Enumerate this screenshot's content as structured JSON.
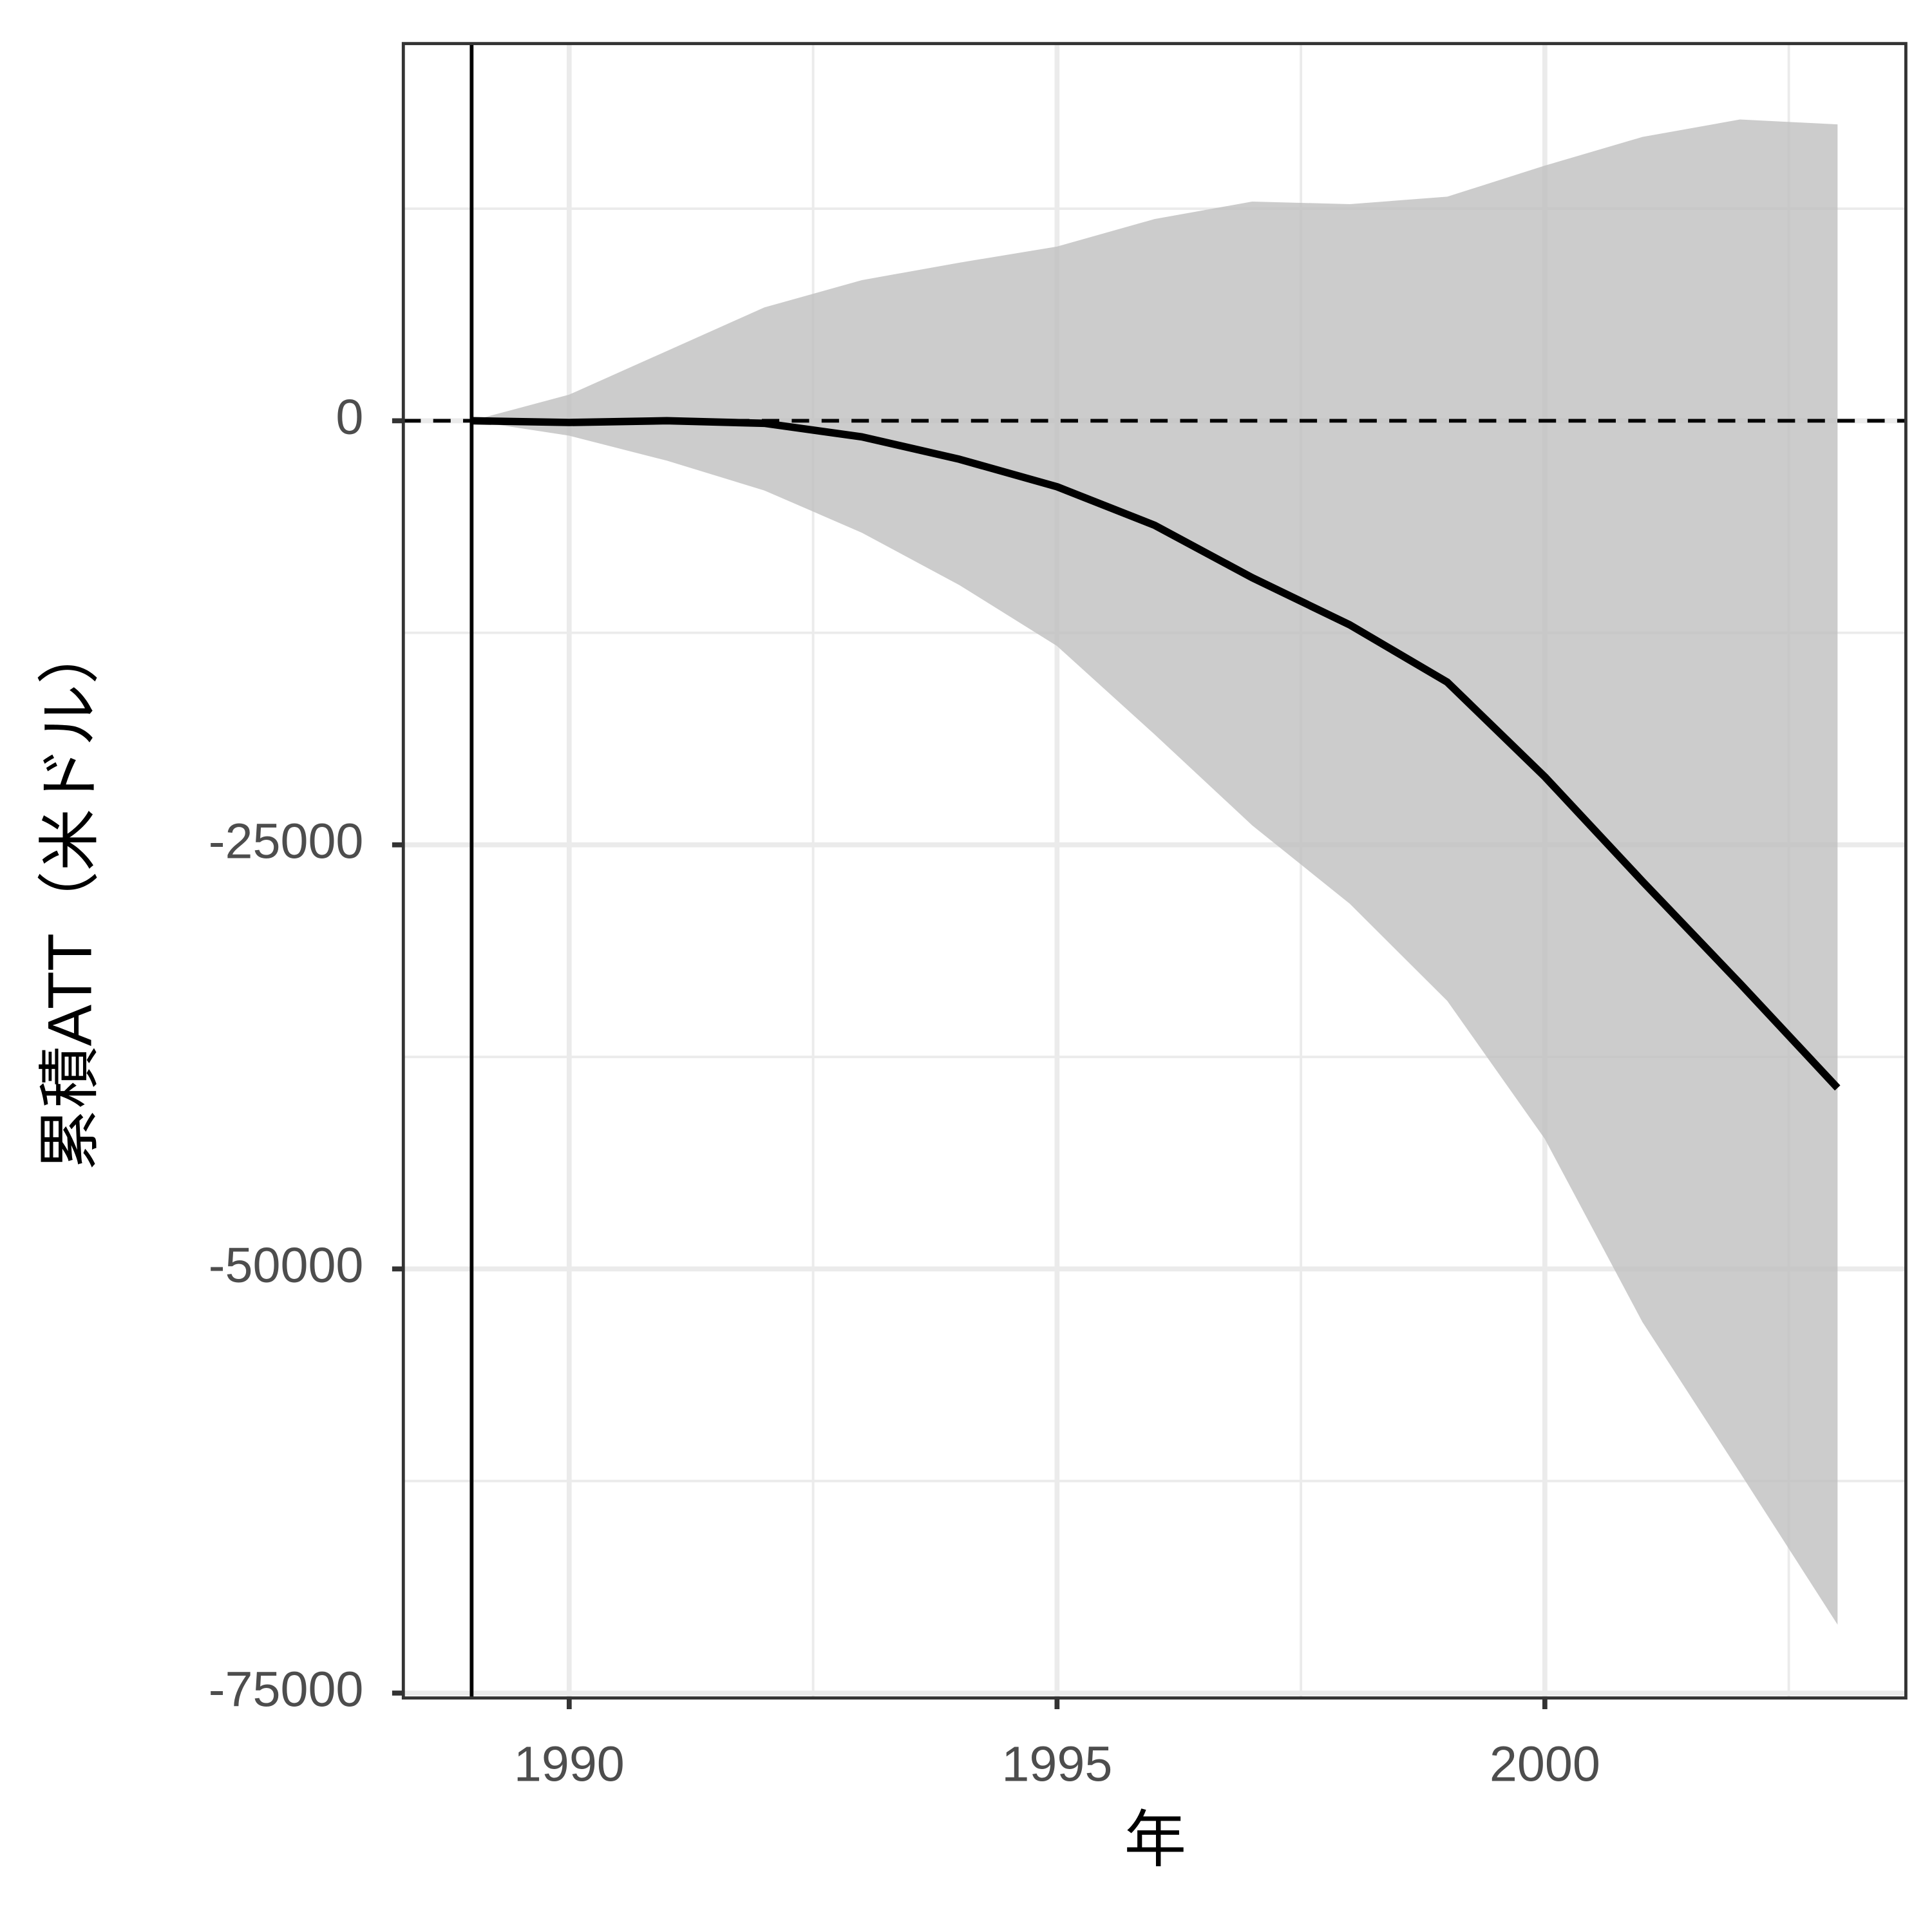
{
  "chart_data": {
    "type": "line",
    "xlabel": "年",
    "ylabel": "累積ATT（米ドル）",
    "x": [
      1989,
      1990,
      1991,
      1992,
      1993,
      1994,
      1995,
      1996,
      1997,
      1998,
      1999,
      2000,
      2001,
      2002,
      2003
    ],
    "series": [
      {
        "color": "#000000",
        "values": [
          0,
          -100,
          0,
          -150,
          -950,
          -2270,
          -3890,
          -6160,
          -9250,
          -12030,
          -15410,
          -20990,
          -27150,
          -33170,
          -39330
        ]
      }
    ],
    "band": {
      "color": "#bfbfbf",
      "upper": [
        0,
        1540,
        4110,
        6680,
        8290,
        9320,
        10270,
        11890,
        12920,
        12770,
        13210,
        15040,
        16730,
        17760,
        17470
      ],
      "lower": [
        0,
        -880,
        -2350,
        -4110,
        -6600,
        -9690,
        -13280,
        -18490,
        -23850,
        -28470,
        -34200,
        -42340,
        -53130,
        -62010,
        -70970
      ]
    },
    "vline": 1989,
    "hline": 0,
    "xlim": [
      1988.3,
      2003.7
    ],
    "xticks": [
      1990,
      1995,
      2000
    ],
    "ylim": [
      -75290,
      22235
    ],
    "yticks": [
      -75000,
      -50000,
      -25000,
      0
    ],
    "grid": true
  }
}
